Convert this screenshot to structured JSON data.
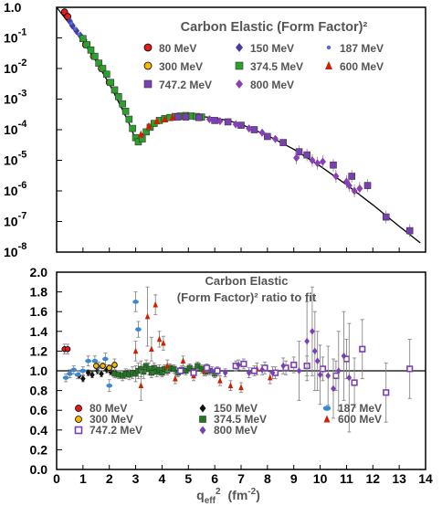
{
  "chart_data": [
    {
      "type": "scatter",
      "title": "Carbon Elastic (Form Factor)²",
      "ylabel": "",
      "xlabel": "",
      "yscale": "log",
      "ylim": [
        1e-08,
        1
      ],
      "xlim": [
        0,
        14
      ],
      "y_tick_labels": [
        {
          "value": 1,
          "mantissa": "1.0",
          "exp": ""
        },
        {
          "value": 0.1,
          "mantissa": "10",
          "exp": "-1"
        },
        {
          "value": 0.01,
          "mantissa": "10",
          "exp": "-2"
        },
        {
          "value": 0.001,
          "mantissa": "10",
          "exp": "-3"
        },
        {
          "value": 0.0001,
          "mantissa": "10",
          "exp": "-4"
        },
        {
          "value": 1e-05,
          "mantissa": "10",
          "exp": "-5"
        },
        {
          "value": 1e-06,
          "mantissa": "10",
          "exp": "-6"
        },
        {
          "value": 1e-07,
          "mantissa": "10",
          "exp": "-7"
        },
        {
          "value": 1e-08,
          "mantissa": "10",
          "exp": "-8"
        }
      ],
      "legend_position": "top-right",
      "fit_curve": {
        "x": [
          0,
          0.5,
          1,
          1.5,
          2,
          2.5,
          2.8,
          3.0,
          3.2,
          3.5,
          4,
          4.5,
          5,
          5.5,
          6,
          6.5,
          7,
          8,
          9,
          10,
          11,
          12,
          13,
          13.8
        ],
        "y": [
          1,
          0.28,
          0.075,
          0.017,
          0.0031,
          0.00045,
          0.00013,
          4.5e-05,
          6e-05,
          0.00012,
          0.0002,
          0.00026,
          0.00028,
          0.00027,
          0.00024,
          0.0002,
          0.00015,
          6.5e-05,
          2.3e-05,
          6.5e-06,
          1.6e-06,
          3.5e-07,
          7e-08,
          2e-08
        ]
      },
      "series": [
        {
          "name": "80 MeV",
          "color": "#e41a1c",
          "marker": "circle",
          "x": [
            0.3,
            0.42
          ],
          "y": [
            0.7,
            0.5
          ]
        },
        {
          "name": "150 MeV",
          "color": "#4a3aa8",
          "marker": "diamond",
          "x": [
            0.5,
            0.6,
            0.75,
            0.9,
            1.05
          ],
          "y": [
            0.35,
            0.25,
            0.17,
            0.12,
            0.085
          ]
        },
        {
          "name": "187 MeV",
          "color": "#4a6fd0",
          "marker": "dot",
          "x": [
            0.55,
            0.7,
            0.85,
            1.0,
            1.2
          ],
          "y": [
            0.3,
            0.2,
            0.13,
            0.09,
            0.05
          ]
        },
        {
          "name": "300 MeV",
          "color": "#f5b800",
          "marker": "circle",
          "x": [
            1.1,
            1.4,
            1.7,
            2.0
          ],
          "y": [
            0.06,
            0.025,
            0.01,
            0.0035
          ]
        },
        {
          "name": "374.5 MeV",
          "color": "#2ca02c",
          "marker": "square",
          "x": [
            1.0,
            1.15,
            1.3,
            1.45,
            1.6,
            1.75,
            1.9,
            2.05,
            2.2,
            2.35,
            2.5,
            2.62,
            2.75,
            2.88,
            3.0,
            3.1,
            3.25,
            3.4,
            3.55,
            3.7,
            3.9,
            4.1,
            4.3,
            4.5,
            4.7,
            4.9,
            5.1,
            5.3,
            5.5
          ],
          "y": [
            0.095,
            0.06,
            0.04,
            0.025,
            0.015,
            0.01,
            0.0065,
            0.0035,
            0.002,
            0.0012,
            0.0007,
            0.0004,
            0.00022,
            0.00011,
            5.5e-05,
            4e-05,
            5e-05,
            8.5e-05,
            0.00012,
            0.00016,
            0.0002,
            0.00023,
            0.00025,
            0.00027,
            0.00028,
            0.00029,
            0.00028,
            0.00027,
            0.00026
          ]
        },
        {
          "name": "600 MeV",
          "color": "#cc2200",
          "marker": "triangle",
          "x": [
            3.2,
            3.5,
            3.8,
            4.1,
            4.4
          ],
          "y": [
            7e-05,
            0.00013,
            0.00019,
            0.00022,
            0.00025
          ]
        },
        {
          "name": "747.2 MeV",
          "color": "#7b3fb5",
          "marker": "square",
          "x": [
            4.6,
            4.9,
            5.4,
            6.0,
            6.5,
            7.0,
            7.5,
            8.0,
            8.6,
            9.2,
            9.5,
            10.5,
            11.2,
            11.8,
            12.5,
            13.4
          ],
          "y": [
            0.00026,
            0.00026,
            0.00025,
            0.0002,
            0.00018,
            0.00014,
            0.0001,
            6e-05,
            3.8e-05,
            1.9e-05,
            1.5e-05,
            7e-06,
            3e-06,
            1.5e-06,
            1.4e-07,
            5e-08
          ]
        },
        {
          "name": "800 MeV",
          "color": "#8a3fb5",
          "marker": "diamond",
          "x": [
            5.8,
            6.2,
            6.8,
            7.3,
            7.8,
            8.3,
            9.1,
            9.7,
            9.9,
            10.1,
            10.6,
            11.0,
            11.1,
            11.3,
            11.5
          ],
          "y": [
            0.00022,
            0.00019,
            0.00015,
            0.00011,
            8e-05,
            5e-05,
            1.2e-05,
            1e-05,
            8e-06,
            9e-06,
            3e-06,
            2e-06,
            1.5e-06,
            1e-06,
            1.2e-06
          ]
        }
      ]
    },
    {
      "type": "scatter",
      "title": "Carbon  Elastic\n(Form Factor)² ratio to fit",
      "title_lines": [
        "Carbon  Elastic",
        "(Form Factor)² ratio to fit"
      ],
      "xlabel": "q_eff² (fm⁻²)",
      "xlabel_main": "q",
      "xlabel_sub": "eff",
      "xlabel_sup": "2",
      "xlabel_unit": "(fm",
      "xlabel_unit_sup": "-2",
      "xlabel_unit_close": ")",
      "ylabel": "",
      "ylim": [
        0.0,
        2.0
      ],
      "xlim": [
        0,
        14
      ],
      "x_ticks": [
        0,
        1,
        2,
        3,
        4,
        5,
        6,
        7,
        8,
        9,
        10,
        11,
        12,
        13,
        14
      ],
      "y_ticks": [
        "0.0",
        "0.2",
        "0.4",
        "0.6",
        "0.8",
        "1.0",
        "1.2",
        "1.4",
        "1.6",
        "1.8",
        "2.0"
      ],
      "reference_line": 1.0,
      "legend_position": "bottom-left",
      "series": [
        {
          "name": "80 MeV",
          "color": "#e41a1c",
          "marker": "circle",
          "x": [
            0.3,
            0.42
          ],
          "y": [
            1.22,
            1.22
          ],
          "err": [
            0.05,
            0.05
          ]
        },
        {
          "name": "150 MeV",
          "color": "#111111",
          "marker": "diamond",
          "x": [
            0.85,
            1.0,
            1.2,
            1.35,
            1.55,
            1.7,
            1.9,
            2.05
          ],
          "y": [
            0.95,
            0.92,
            0.98,
            0.96,
            1.0,
            0.97,
            1.01,
            0.99
          ],
          "err": [
            0.03,
            0.03,
            0.03,
            0.03,
            0.03,
            0.03,
            0.03,
            0.03
          ]
        },
        {
          "name": "187 MeV",
          "color": "#3a88d0",
          "marker": "ellipse",
          "x": [
            0.35,
            0.5,
            0.65,
            0.8,
            1.0,
            1.2,
            1.45,
            1.6,
            1.85,
            2.0,
            2.2,
            3.0,
            3.1
          ],
          "y": [
            0.93,
            0.97,
            1.01,
            0.96,
            1.0,
            1.1,
            1.1,
            1.04,
            1.12,
            0.85,
            1.05,
            1.7,
            1.42
          ],
          "err": [
            0.04,
            0.04,
            0.04,
            0.04,
            0.04,
            0.05,
            0.05,
            0.05,
            0.06,
            0.06,
            0.07,
            0.1,
            0.08
          ]
        },
        {
          "name": "300 MeV",
          "color": "#f5b800",
          "marker": "circle",
          "x": [
            1.5,
            1.75,
            2.0,
            2.2
          ],
          "y": [
            1.05,
            1.05,
            1.03,
            1.06
          ],
          "err": [
            0.03,
            0.03,
            0.03,
            0.03
          ]
        },
        {
          "name": "374.5 MeV",
          "color": "#1e7a1e",
          "marker": "square",
          "x": [
            2.2,
            2.35,
            2.5,
            2.62,
            2.75,
            2.88,
            3.0,
            3.1,
            3.2,
            3.3,
            3.4,
            3.5,
            3.6,
            3.7,
            3.8,
            3.9,
            4.0,
            4.1,
            4.2,
            4.3,
            4.45,
            4.6,
            4.75,
            4.9,
            5.05,
            5.2,
            5.35,
            5.5,
            5.65,
            5.8,
            6.0
          ],
          "y": [
            0.97,
            0.96,
            0.95,
            0.97,
            0.96,
            0.98,
            0.97,
            1.0,
            1.02,
            0.99,
            1.05,
            1.02,
            0.98,
            1.03,
            0.99,
            1.01,
            0.98,
            1.02,
            1.0,
            1.03,
            1.02,
            0.98,
            1.01,
            1.0,
            1.03,
            1.0,
            1.05,
            1.02,
            0.99,
            1.0,
            0.97
          ],
          "err": [
            0.04,
            0.04,
            0.05,
            0.05,
            0.05,
            0.06,
            0.08,
            0.08,
            0.08,
            0.07,
            0.06,
            0.06,
            0.05,
            0.05,
            0.05,
            0.05,
            0.04,
            0.04,
            0.04,
            0.04,
            0.04,
            0.04,
            0.04,
            0.04,
            0.04,
            0.04,
            0.04,
            0.04,
            0.04,
            0.04,
            0.04
          ]
        },
        {
          "name": "600 MeV",
          "color": "#cc2200",
          "marker": "triangle",
          "x": [
            3.0,
            3.2,
            3.45,
            3.6,
            3.75,
            3.9,
            4.05,
            4.2,
            4.5,
            4.8,
            5.2,
            5.6,
            6.2,
            6.6,
            7.0,
            7.6,
            8.1
          ],
          "y": [
            1.2,
            0.85,
            1.55,
            1.22,
            1.67,
            1.32,
            1.28,
            1.05,
            0.92,
            1.1,
            0.95,
            1.0,
            0.9,
            0.85,
            0.83,
            1.02,
            0.93
          ],
          "err": [
            0.1,
            0.15,
            0.3,
            0.12,
            0.1,
            0.08,
            0.07,
            0.06,
            0.05,
            0.05,
            0.05,
            0.05,
            0.05,
            0.05,
            0.05,
            0.06,
            0.06
          ]
        },
        {
          "name": "747.2 MeV",
          "color": "#7b3fb5",
          "marker": "open-square",
          "x": [
            4.7,
            5.2,
            5.7,
            6.1,
            6.8,
            7.1,
            7.5,
            7.9,
            8.3,
            8.7,
            9.0,
            9.5,
            10.1,
            10.6,
            11.0,
            11.3,
            11.6,
            12.5,
            13.4
          ],
          "y": [
            1.0,
            0.98,
            1.03,
            1.0,
            1.05,
            1.07,
            1.0,
            1.03,
            0.98,
            1.03,
            1.06,
            1.05,
            1.02,
            0.95,
            1.12,
            0.88,
            1.22,
            0.78,
            1.02
          ],
          "err": [
            0.03,
            0.03,
            0.04,
            0.04,
            0.05,
            0.05,
            0.05,
            0.06,
            0.06,
            0.07,
            0.08,
            0.1,
            0.12,
            0.15,
            0.2,
            0.25,
            0.3,
            0.3,
            0.3
          ]
        },
        {
          "name": "800 MeV",
          "color": "#7b3fb5",
          "marker": "diamond",
          "x": [
            5.9,
            6.4,
            6.9,
            7.3,
            7.8,
            8.2,
            8.6,
            9.2,
            9.5,
            9.7,
            9.8,
            9.9,
            10.0,
            10.3,
            10.5,
            10.7,
            10.9,
            11.1
          ],
          "y": [
            1.0,
            0.98,
            1.06,
            0.98,
            1.01,
            0.98,
            1.05,
            1.0,
            1.3,
            1.4,
            1.2,
            1.1,
            0.96,
            0.95,
            0.82,
            1.0,
            1.15,
            0.93
          ],
          "err": [
            0.04,
            0.04,
            0.05,
            0.05,
            0.05,
            0.06,
            0.08,
            0.3,
            0.4,
            0.45,
            0.4,
            0.3,
            0.3,
            0.3,
            0.3,
            0.4,
            0.45,
            0.55
          ]
        }
      ]
    }
  ]
}
